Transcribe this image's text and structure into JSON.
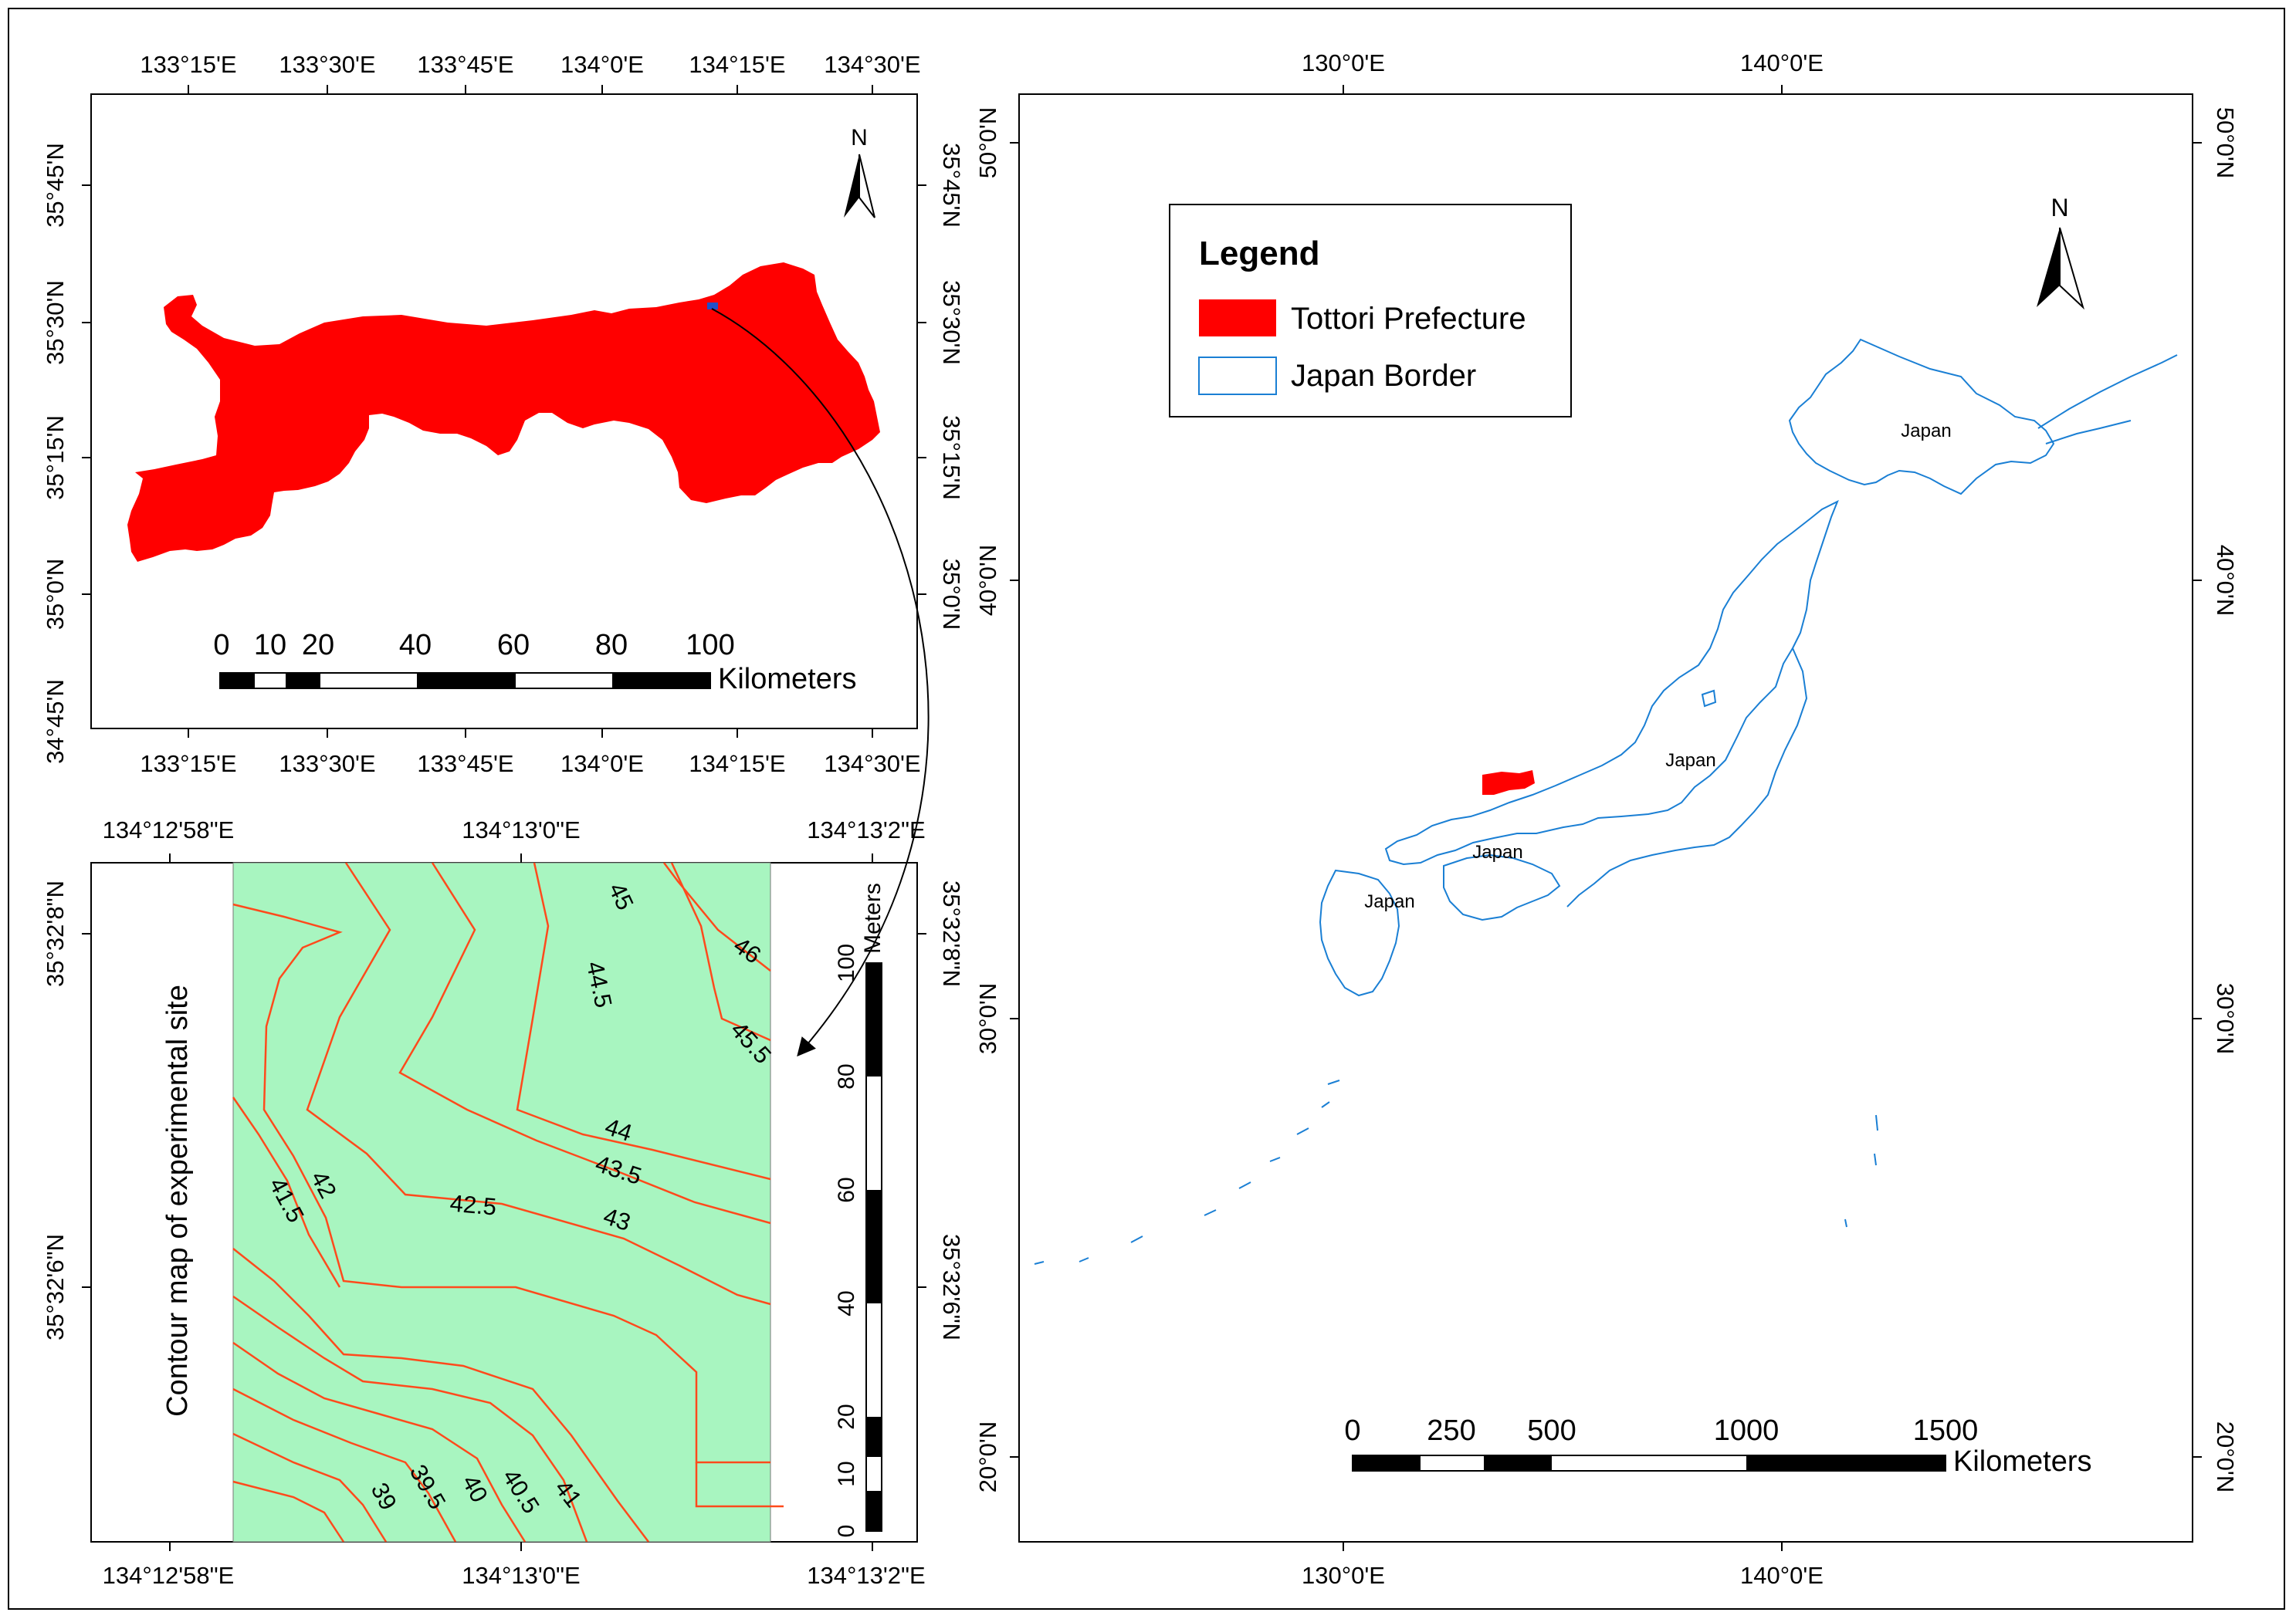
{
  "top_left_map": {
    "top_lon_labels": [
      "133°15'E",
      "133°30'E",
      "133°45'E",
      "134°0'E",
      "134°15'E",
      "134°30'E"
    ],
    "bottom_lon_labels": [
      "133°15'E",
      "133°30'E",
      "133°45'E",
      "134°0'E",
      "134°15'E",
      "134°30'E"
    ],
    "left_lat_labels": [
      "35°45'N",
      "35°30'N",
      "35°15'N",
      "35°0'N",
      "34°45'N"
    ],
    "right_lat_labels": [
      "35°45'N",
      "35°30'N",
      "35°15'N",
      "35°0'N"
    ],
    "north_label": "N",
    "scale_ticks": [
      "0",
      "10",
      "20",
      "40",
      "60",
      "80",
      "100"
    ],
    "scale_unit": "Kilometers",
    "region_color": "#ff0000",
    "site_marker_color": "#2050c8"
  },
  "contour_map": {
    "title": "Contour map of experimental site",
    "top_lon_labels": [
      "134°12'58\"E",
      "134°13'0\"E",
      "134°13'2\"E"
    ],
    "bottom_lon_labels": [
      "134°12'58\"E",
      "134°13'0\"E",
      "134°13'2\"E"
    ],
    "left_lat_labels": [
      "35°32'8\"N",
      "35°32'6\"N"
    ],
    "right_lat_labels": [
      "35°32'8\"N",
      "35°32'6\"N"
    ],
    "contour_labels": [
      "45",
      "46",
      "44.5",
      "45.5",
      "44",
      "43.5",
      "42.5",
      "43",
      "42",
      "41.5",
      "41",
      "40.5",
      "40",
      "39.5",
      "39"
    ],
    "scale_ticks": [
      "0",
      "10",
      "20",
      "40",
      "60",
      "80",
      "100"
    ],
    "scale_unit": "Meters",
    "fill_color": "#a8f5c0",
    "contour_color": "#ff4a1c"
  },
  "japan_map": {
    "top_lon_labels": [
      "130°0'E",
      "140°0'E"
    ],
    "bottom_lon_labels": [
      "130°0'E",
      "140°0'E"
    ],
    "left_lat_labels": [
      "50°0'N",
      "40°0'N",
      "30°0'N",
      "20°0'N"
    ],
    "right_lat_labels": [
      "50°0'N",
      "40°0'N",
      "30°0'N",
      "20°0'N"
    ],
    "legend": {
      "title": "Legend",
      "items": [
        {
          "label": "Tottori Prefecture",
          "color": "#ff0000"
        },
        {
          "label": "Japan Border",
          "color": "#1a7fd4"
        }
      ]
    },
    "north_label": "N",
    "place_labels": [
      "Japan",
      "Japan",
      "Japan",
      "Japan"
    ],
    "scale_ticks": [
      "0",
      "250",
      "500",
      "1000",
      "1500"
    ],
    "scale_unit": "Kilometers",
    "border_color": "#1a7fd4"
  }
}
